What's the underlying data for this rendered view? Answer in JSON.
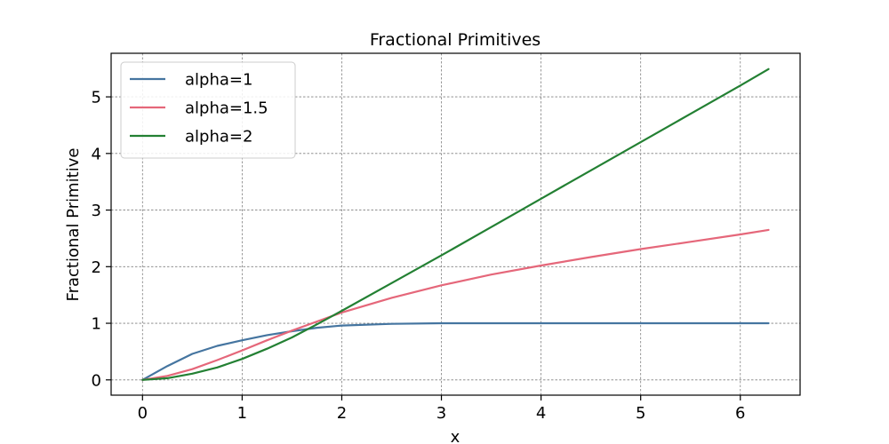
{
  "chart_data": {
    "type": "line",
    "title": "Fractional Primitives",
    "xlabel": "x",
    "ylabel": "Fractional Primitive",
    "xlim": [
      -0.315,
      6.6
    ],
    "ylim": [
      -0.27,
      5.77
    ],
    "xticks": [
      0,
      1,
      2,
      3,
      4,
      5,
      6
    ],
    "yticks": [
      0,
      1,
      2,
      3,
      4,
      5
    ],
    "grid": true,
    "legend_position": "top-left",
    "series": [
      {
        "name": "alpha=1",
        "color": "#4575a0",
        "x": [
          0,
          0.25,
          0.5,
          0.75,
          1.0,
          1.25,
          1.5,
          1.75,
          2.0,
          2.5,
          3.0,
          3.5,
          4.0,
          4.5,
          5.0,
          5.5,
          6.0,
          6.283
        ],
        "y": [
          0,
          0.245,
          0.46,
          0.6,
          0.7,
          0.79,
          0.86,
          0.92,
          0.96,
          0.99,
          1.0,
          1.0,
          1.0,
          1.0,
          1.0,
          1.0,
          1.0,
          1.0
        ]
      },
      {
        "name": "alpha=1.5",
        "color": "#e5677a",
        "x": [
          0,
          0.25,
          0.5,
          0.75,
          1.0,
          1.25,
          1.5,
          1.75,
          2.0,
          2.5,
          3.0,
          3.5,
          4.0,
          4.5,
          5.0,
          5.5,
          6.0,
          6.283
        ],
        "y": [
          0,
          0.07,
          0.19,
          0.35,
          0.52,
          0.7,
          0.87,
          1.03,
          1.19,
          1.45,
          1.67,
          1.86,
          2.02,
          2.17,
          2.31,
          2.44,
          2.57,
          2.65
        ]
      },
      {
        "name": "alpha=2",
        "color": "#238033",
        "x": [
          0,
          0.25,
          0.5,
          0.75,
          1.0,
          1.25,
          1.5,
          1.75,
          2.0,
          2.5,
          3.0,
          3.5,
          4.0,
          4.5,
          5.0,
          5.5,
          6.0,
          6.283
        ],
        "y": [
          0,
          0.03,
          0.11,
          0.22,
          0.37,
          0.55,
          0.75,
          0.98,
          1.22,
          1.71,
          2.2,
          2.7,
          3.2,
          3.7,
          4.2,
          4.7,
          5.2,
          5.49
        ]
      }
    ]
  }
}
